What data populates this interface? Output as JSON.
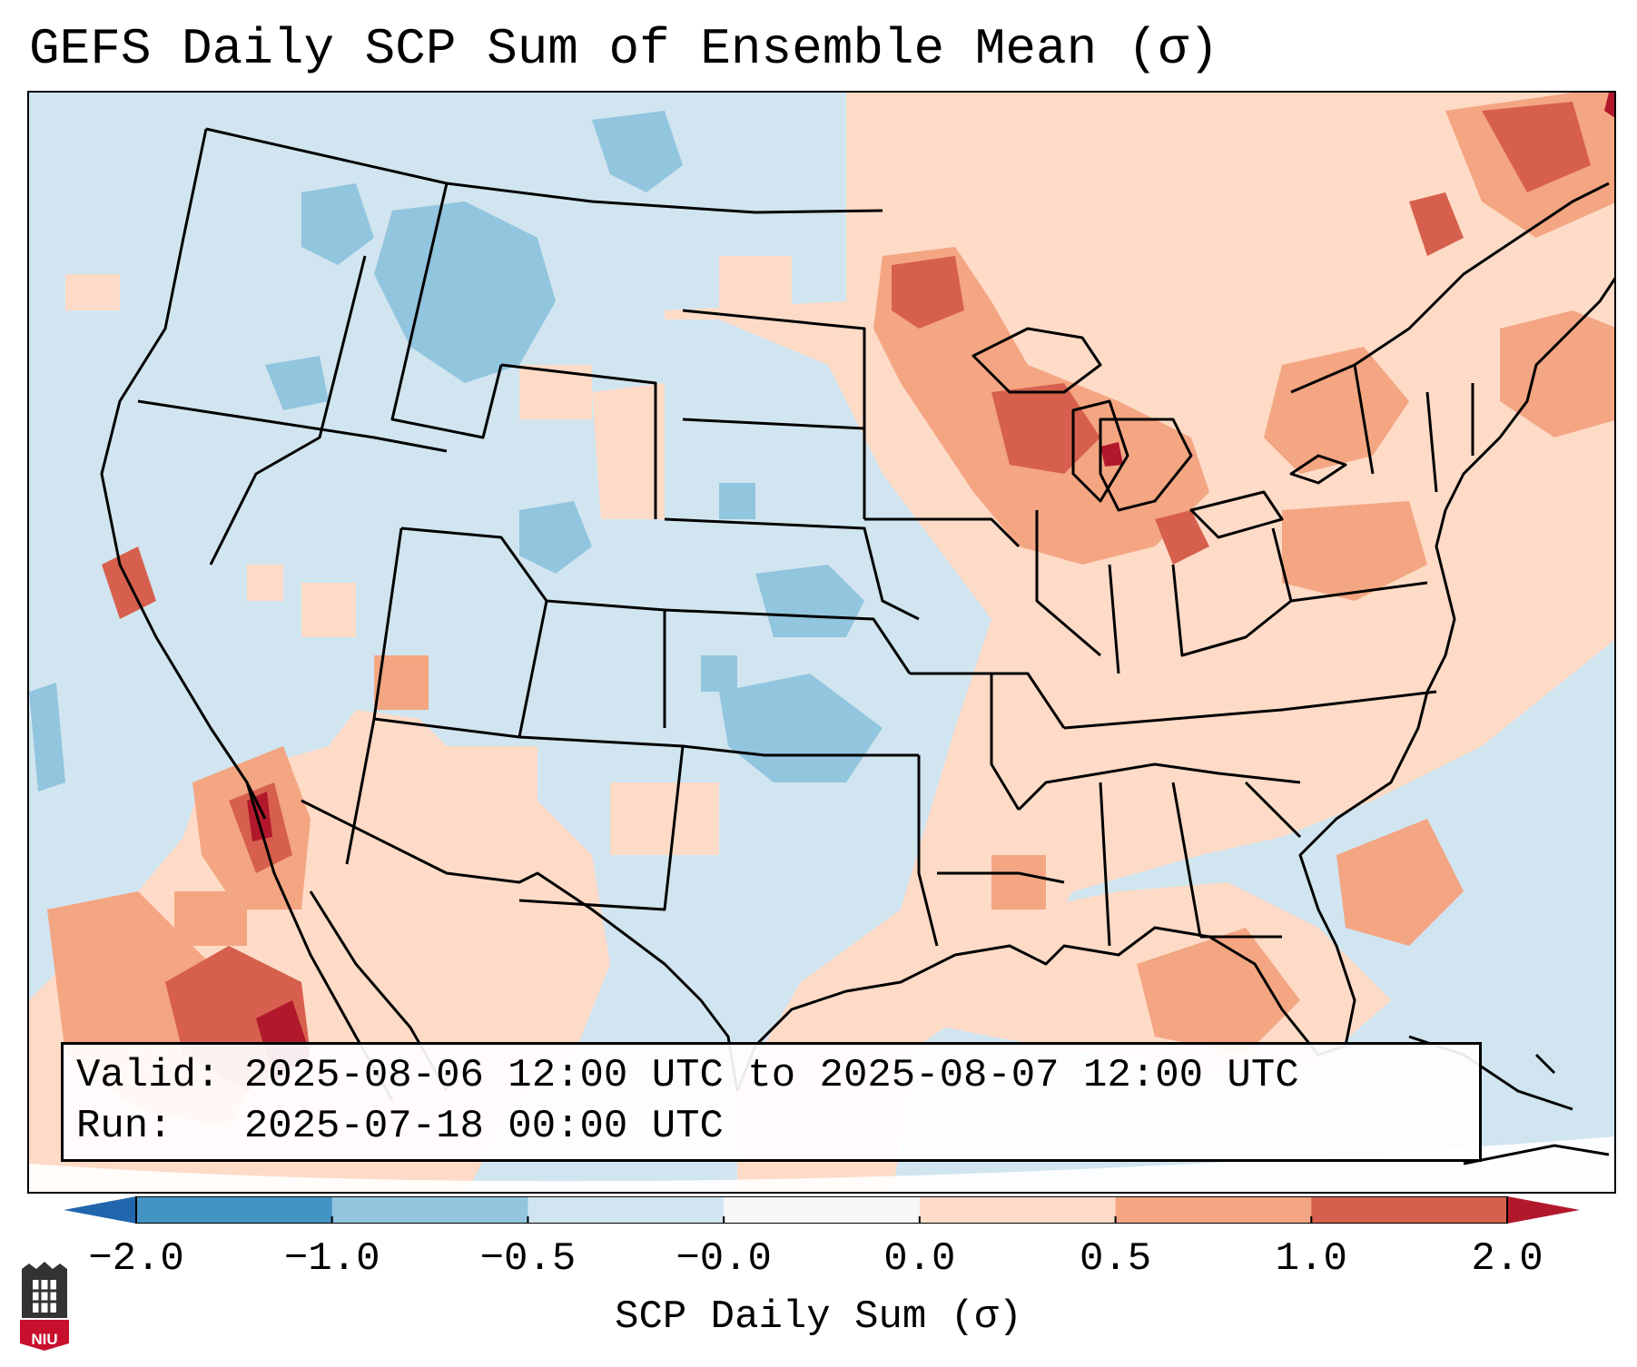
{
  "title": "GEFS Daily SCP Sum of Ensemble Mean (σ)",
  "info": {
    "valid_label": "Valid:",
    "valid_value": "2025-08-06 12:00 UTC to 2025-08-07 12:00 UTC",
    "run_label": "Run:",
    "run_value": "2025-07-18 00:00 UTC"
  },
  "colorbar": {
    "label": "SCP Daily Sum (σ)",
    "ticks": [
      "−2.0",
      "−1.0",
      "−0.5",
      "−0.0",
      "0.0",
      "0.5",
      "1.0",
      "2.0"
    ],
    "bin_colors": [
      "#4393c3",
      "#92c5de",
      "#d1e5f0",
      "#f7f7f7",
      "#fddbc7",
      "#f4a582",
      "#d6604d"
    ],
    "under_color": "#2166ac",
    "over_color": "#b2182b"
  },
  "logo": {
    "text": "NIU"
  },
  "map": {
    "projection": "Lambert Conformal (CONUS)",
    "dominant_colors": {
      "west_and_plains": "#d1e5f0",
      "east_and_gulf": "#fddbc7",
      "anomaly_high": "#d6604d",
      "anomaly_max": "#b2182b",
      "anomaly_low": "#92c5de"
    }
  }
}
